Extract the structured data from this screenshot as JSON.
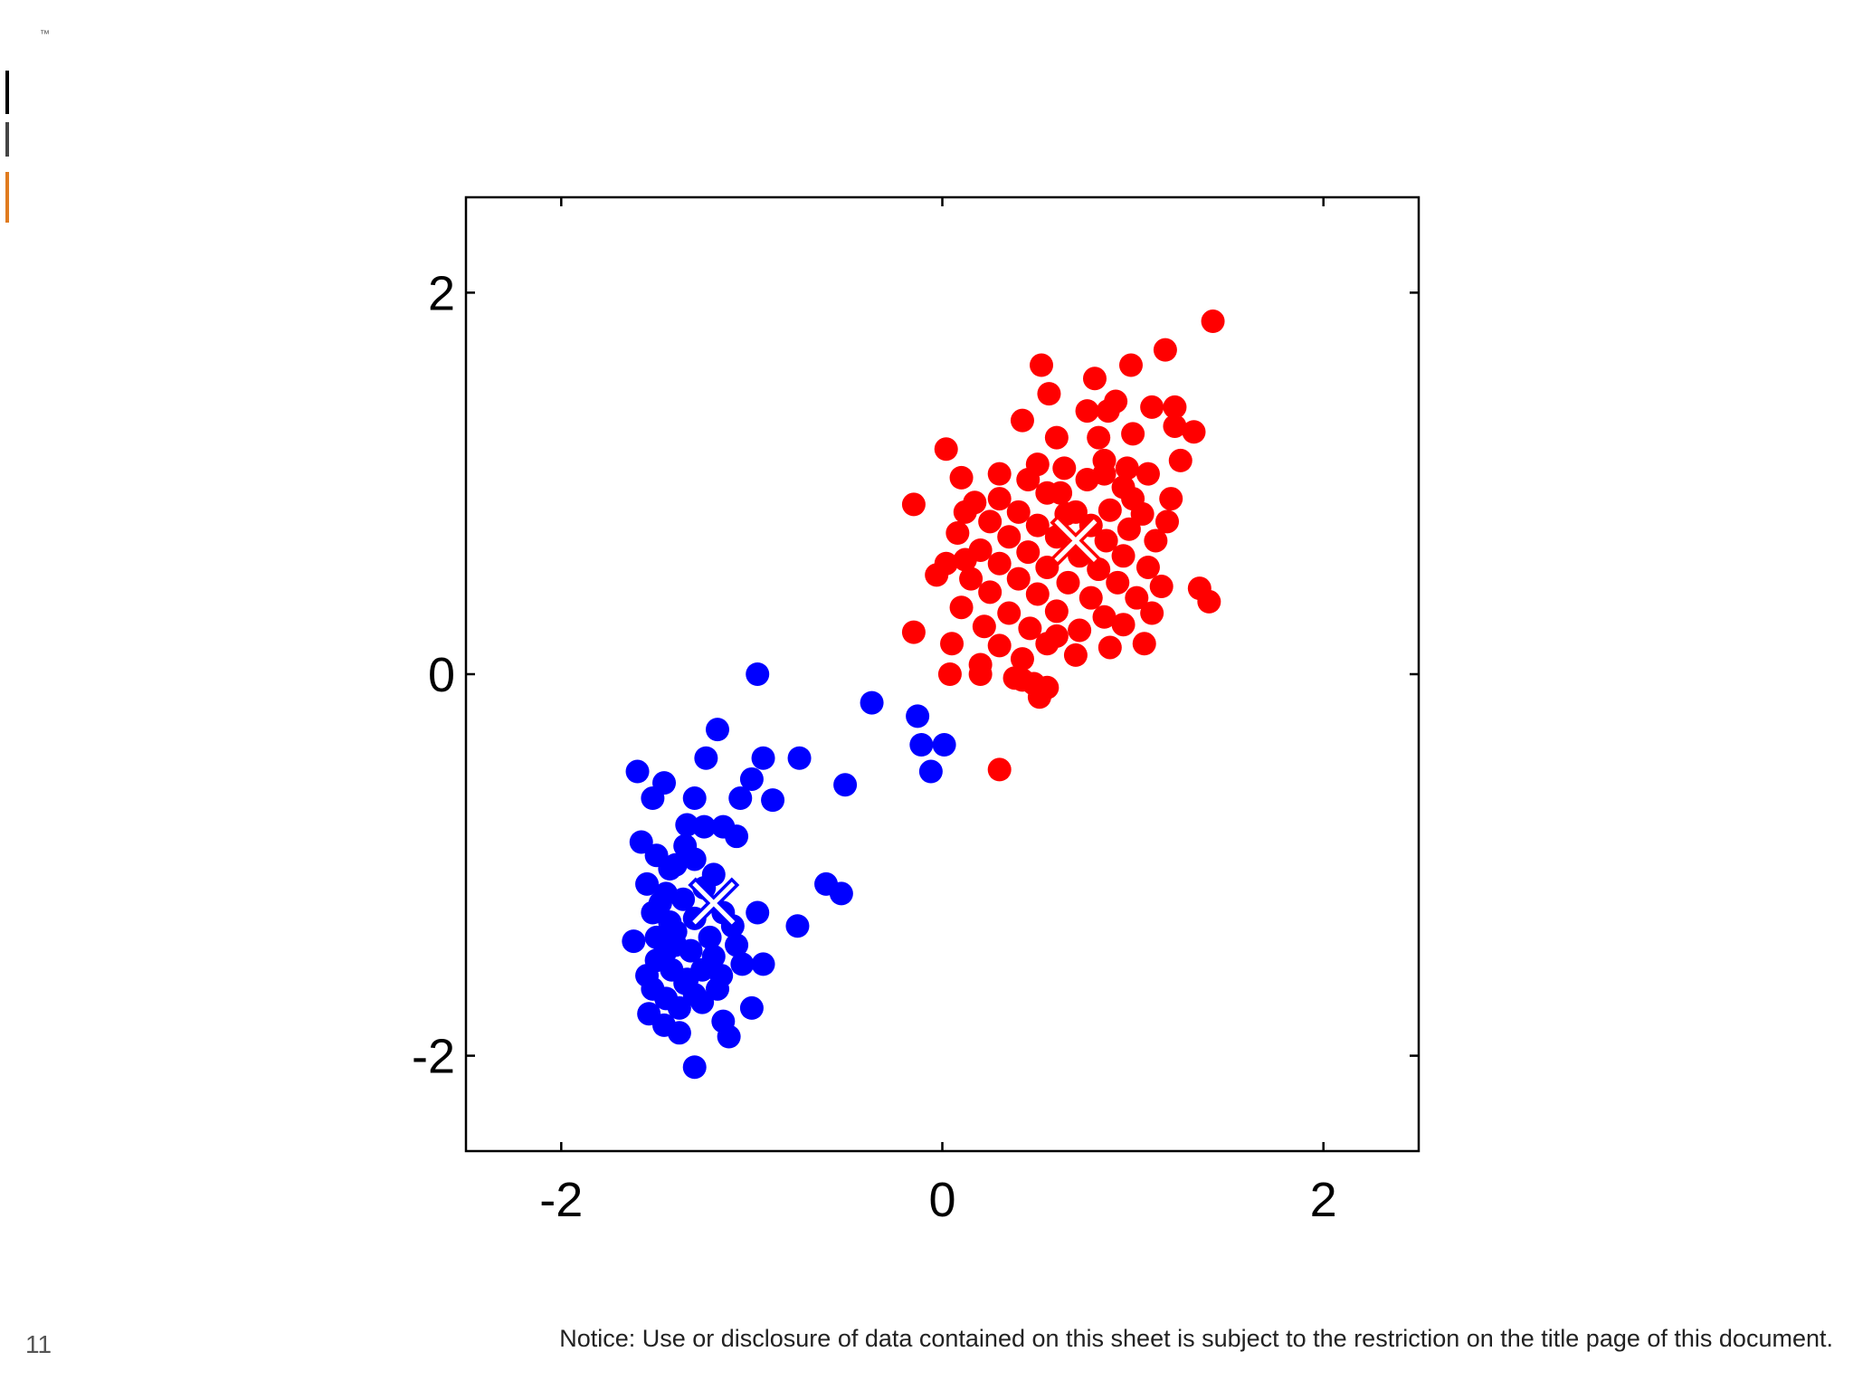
{
  "page": {
    "tm_mark": "™",
    "slide_number": "11",
    "notice": "Notice: Use or disclosure of data contained on this sheet is subject to the restriction on the title page of this document."
  },
  "chart_data": {
    "type": "scatter",
    "xlim": [
      -2.5,
      2.5
    ],
    "ylim": [
      -2.5,
      2.5
    ],
    "x_ticks": [
      -2,
      0,
      2
    ],
    "y_ticks": [
      -2,
      0,
      2
    ],
    "x_tick_labels": [
      "-2",
      "0",
      "2"
    ],
    "y_tick_labels": [
      "-2",
      "0",
      "2"
    ],
    "grid": false,
    "series": [
      {
        "color": "#ff0000",
        "centroid": [
          0.7,
          0.7
        ],
        "points": [
          [
            1.42,
            1.85
          ],
          [
            1.17,
            1.7
          ],
          [
            0.52,
            1.62
          ],
          [
            0.99,
            1.62
          ],
          [
            0.8,
            1.55
          ],
          [
            0.56,
            1.47
          ],
          [
            0.76,
            1.38
          ],
          [
            1.1,
            1.4
          ],
          [
            1.22,
            1.4
          ],
          [
            0.87,
            1.38
          ],
          [
            0.91,
            1.43
          ],
          [
            0.42,
            1.33
          ],
          [
            1.32,
            1.27
          ],
          [
            1.0,
            1.26
          ],
          [
            0.6,
            1.24
          ],
          [
            0.82,
            1.24
          ],
          [
            1.22,
            1.3
          ],
          [
            0.02,
            1.18
          ],
          [
            0.85,
            1.12
          ],
          [
            1.25,
            1.12
          ],
          [
            0.5,
            1.1
          ],
          [
            0.64,
            1.08
          ],
          [
            0.97,
            1.08
          ],
          [
            0.1,
            1.03
          ],
          [
            0.45,
            1.02
          ],
          [
            0.76,
            1.02
          ],
          [
            1.08,
            1.05
          ],
          [
            0.95,
            0.98
          ],
          [
            0.55,
            0.95
          ],
          [
            0.3,
            0.92
          ],
          [
            0.17,
            0.9
          ],
          [
            1.2,
            0.92
          ],
          [
            -0.15,
            0.89
          ],
          [
            0.12,
            0.85
          ],
          [
            0.4,
            0.85
          ],
          [
            0.65,
            0.84
          ],
          [
            0.88,
            0.86
          ],
          [
            1.05,
            0.84
          ],
          [
            1.18,
            0.8
          ],
          [
            0.25,
            0.8
          ],
          [
            0.5,
            0.78
          ],
          [
            0.78,
            0.78
          ],
          [
            0.98,
            0.76
          ],
          [
            0.08,
            0.74
          ],
          [
            0.35,
            0.72
          ],
          [
            0.6,
            0.72
          ],
          [
            0.86,
            0.7
          ],
          [
            1.12,
            0.7
          ],
          [
            0.2,
            0.65
          ],
          [
            0.45,
            0.64
          ],
          [
            0.72,
            0.62
          ],
          [
            0.95,
            0.62
          ],
          [
            0.02,
            0.58
          ],
          [
            0.3,
            0.58
          ],
          [
            0.55,
            0.56
          ],
          [
            0.82,
            0.55
          ],
          [
            1.08,
            0.56
          ],
          [
            -0.03,
            0.52
          ],
          [
            0.15,
            0.5
          ],
          [
            0.4,
            0.5
          ],
          [
            0.66,
            0.48
          ],
          [
            0.92,
            0.48
          ],
          [
            1.15,
            0.46
          ],
          [
            0.25,
            0.43
          ],
          [
            0.5,
            0.42
          ],
          [
            0.78,
            0.4
          ],
          [
            1.02,
            0.4
          ],
          [
            1.35,
            0.45
          ],
          [
            1.4,
            0.38
          ],
          [
            0.1,
            0.35
          ],
          [
            0.35,
            0.32
          ],
          [
            0.6,
            0.33
          ],
          [
            0.85,
            0.3
          ],
          [
            1.1,
            0.32
          ],
          [
            0.22,
            0.25
          ],
          [
            0.46,
            0.24
          ],
          [
            0.72,
            0.23
          ],
          [
            0.95,
            0.26
          ],
          [
            -0.15,
            0.22
          ],
          [
            0.05,
            0.16
          ],
          [
            0.3,
            0.15
          ],
          [
            0.55,
            0.16
          ],
          [
            0.88,
            0.14
          ],
          [
            1.06,
            0.16
          ],
          [
            0.42,
            0.08
          ],
          [
            0.7,
            0.1
          ],
          [
            0.2,
            0.05
          ],
          [
            0.04,
            0.0
          ],
          [
            0.2,
            0.0
          ],
          [
            0.38,
            -0.02
          ],
          [
            0.48,
            -0.05
          ],
          [
            0.55,
            -0.07
          ],
          [
            0.42,
            -0.03
          ],
          [
            0.51,
            -0.12
          ],
          [
            0.3,
            -0.5
          ],
          [
            0.62,
            0.95
          ],
          [
            0.85,
            1.05
          ],
          [
            0.3,
            1.05
          ],
          [
            1.0,
            0.92
          ],
          [
            0.12,
            0.6
          ],
          [
            0.7,
            0.85
          ],
          [
            0.6,
            0.2
          ]
        ]
      },
      {
        "color": "#0000ff",
        "centroid": [
          -1.2,
          -1.2
        ],
        "points": [
          [
            -0.97,
            0.0
          ],
          [
            -0.37,
            -0.15
          ],
          [
            -0.13,
            -0.22
          ],
          [
            -0.11,
            -0.37
          ],
          [
            0.01,
            -0.37
          ],
          [
            -0.06,
            -0.51
          ],
          [
            -1.18,
            -0.29
          ],
          [
            -1.24,
            -0.44
          ],
          [
            -0.94,
            -0.44
          ],
          [
            -0.75,
            -0.44
          ],
          [
            -1.6,
            -0.51
          ],
          [
            -1.0,
            -0.55
          ],
          [
            -0.51,
            -0.58
          ],
          [
            -1.46,
            -0.57
          ],
          [
            -1.3,
            -0.65
          ],
          [
            -1.06,
            -0.65
          ],
          [
            -0.89,
            -0.66
          ],
          [
            -1.52,
            -0.65
          ],
          [
            -1.34,
            -0.79
          ],
          [
            -1.25,
            -0.8
          ],
          [
            -1.15,
            -0.8
          ],
          [
            -1.08,
            -0.85
          ],
          [
            -1.58,
            -0.88
          ],
          [
            -1.5,
            -0.95
          ],
          [
            -1.35,
            -0.9
          ],
          [
            -1.4,
            -1.0
          ],
          [
            -1.3,
            -0.97
          ],
          [
            -1.2,
            -1.05
          ],
          [
            -0.61,
            -1.1
          ],
          [
            -0.53,
            -1.15
          ],
          [
            -1.55,
            -1.1
          ],
          [
            -1.45,
            -1.15
          ],
          [
            -1.36,
            -1.18
          ],
          [
            -1.25,
            -1.12
          ],
          [
            -1.15,
            -1.25
          ],
          [
            -1.52,
            -1.25
          ],
          [
            -1.43,
            -1.3
          ],
          [
            -1.3,
            -1.28
          ],
          [
            -0.97,
            -1.25
          ],
          [
            -0.76,
            -1.32
          ],
          [
            -1.62,
            -1.4
          ],
          [
            -1.5,
            -1.38
          ],
          [
            -1.4,
            -1.42
          ],
          [
            -1.32,
            -1.45
          ],
          [
            -1.22,
            -1.38
          ],
          [
            -1.08,
            -1.42
          ],
          [
            -1.5,
            -1.5
          ],
          [
            -1.42,
            -1.55
          ],
          [
            -1.34,
            -1.6
          ],
          [
            -1.26,
            -1.55
          ],
          [
            -1.16,
            -1.58
          ],
          [
            -1.05,
            -1.52
          ],
          [
            -0.94,
            -1.52
          ],
          [
            -1.52,
            -1.65
          ],
          [
            -1.45,
            -1.7
          ],
          [
            -1.38,
            -1.75
          ],
          [
            -1.3,
            -1.68
          ],
          [
            -1.18,
            -1.65
          ],
          [
            -1.54,
            -1.78
          ],
          [
            -1.46,
            -1.84
          ],
          [
            -1.38,
            -1.88
          ],
          [
            -1.15,
            -1.82
          ],
          [
            -1.12,
            -1.9
          ],
          [
            -1.0,
            -1.75
          ],
          [
            -1.3,
            -2.06
          ],
          [
            -1.48,
            -1.2
          ],
          [
            -1.4,
            -1.35
          ],
          [
            -1.2,
            -1.48
          ],
          [
            -1.35,
            -1.62
          ],
          [
            -1.43,
            -1.02
          ],
          [
            -1.1,
            -1.32
          ],
          [
            -1.26,
            -1.72
          ],
          [
            -1.55,
            -1.58
          ],
          [
            -1.45,
            -1.45
          ]
        ]
      }
    ]
  }
}
